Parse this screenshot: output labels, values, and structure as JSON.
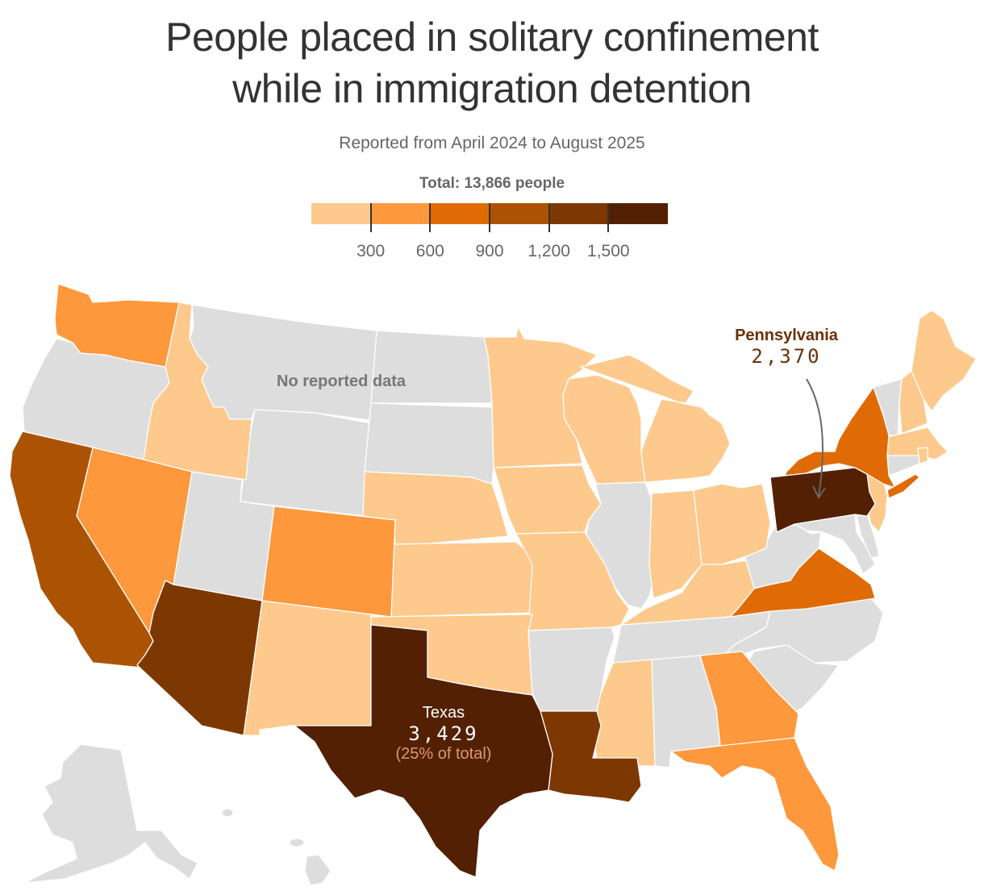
{
  "header": {
    "title_line1": "People placed in solitary confinement",
    "title_line2": "while in immigration detention",
    "subtitle": "Reported from April 2024 to August 2025"
  },
  "legend": {
    "title": "Total: 13,866 people",
    "colors": [
      "#fdc98c",
      "#fd983c",
      "#e06b06",
      "#ac5303",
      "#7d3802",
      "#532003"
    ],
    "ticks": [
      "300",
      "600",
      "900",
      "1,200",
      "1,500"
    ],
    "no_data_color": "#dddddd"
  },
  "annotations": {
    "no_data": "No reported data",
    "texas": {
      "name": "Texas",
      "value": "3,429",
      "share": "(25% of total)"
    },
    "pennsylvania": {
      "name": "Pennsylvania",
      "value": "2,370"
    }
  },
  "chart_data": {
    "type": "choropleth",
    "title": "People placed in solitary confinement while in immigration detention",
    "subtitle": "Reported from April 2024 to August 2025",
    "total": 13866,
    "bins": [
      {
        "range": "<300",
        "color": "#fdc98c"
      },
      {
        "range": "300-600",
        "color": "#fd983c"
      },
      {
        "range": "600-900",
        "color": "#e06b06"
      },
      {
        "range": "900-1,200",
        "color": "#ac5303"
      },
      {
        "range": "1,200-1,500",
        "color": "#7d3802"
      },
      {
        "range": ">1,500",
        "color": "#532003"
      }
    ],
    "labeled_values": {
      "Texas": 3429,
      "Pennsylvania": 2370
    },
    "states_by_bin": {
      "<300": [
        "Idaho",
        "Minnesota",
        "Wisconsin",
        "Michigan",
        "Iowa",
        "Nebraska",
        "Kansas",
        "Missouri",
        "Oklahoma",
        "New Mexico",
        "Indiana",
        "Ohio",
        "Kentucky",
        "Mississippi",
        "Maine",
        "New Hampshire",
        "Massachusetts",
        "Rhode Island",
        "New Jersey"
      ],
      "300-600": [
        "Washington",
        "Nevada",
        "Colorado",
        "Georgia",
        "Florida"
      ],
      "600-900": [
        "New York",
        "Virginia"
      ],
      "900-1,200": [
        "California"
      ],
      "1,200-1,500": [
        "Arizona",
        "Louisiana"
      ],
      ">1,500": [
        "Texas",
        "Pennsylvania"
      ],
      "no_data": [
        "Oregon",
        "Montana",
        "Wyoming",
        "Utah",
        "North Dakota",
        "South Dakota",
        "Illinois",
        "Arkansas",
        "Tennessee",
        "Alabama",
        "North Carolina",
        "South Carolina",
        "West Virginia",
        "Maryland",
        "Delaware",
        "Connecticut",
        "Vermont",
        "Alaska",
        "Hawaii"
      ]
    }
  }
}
